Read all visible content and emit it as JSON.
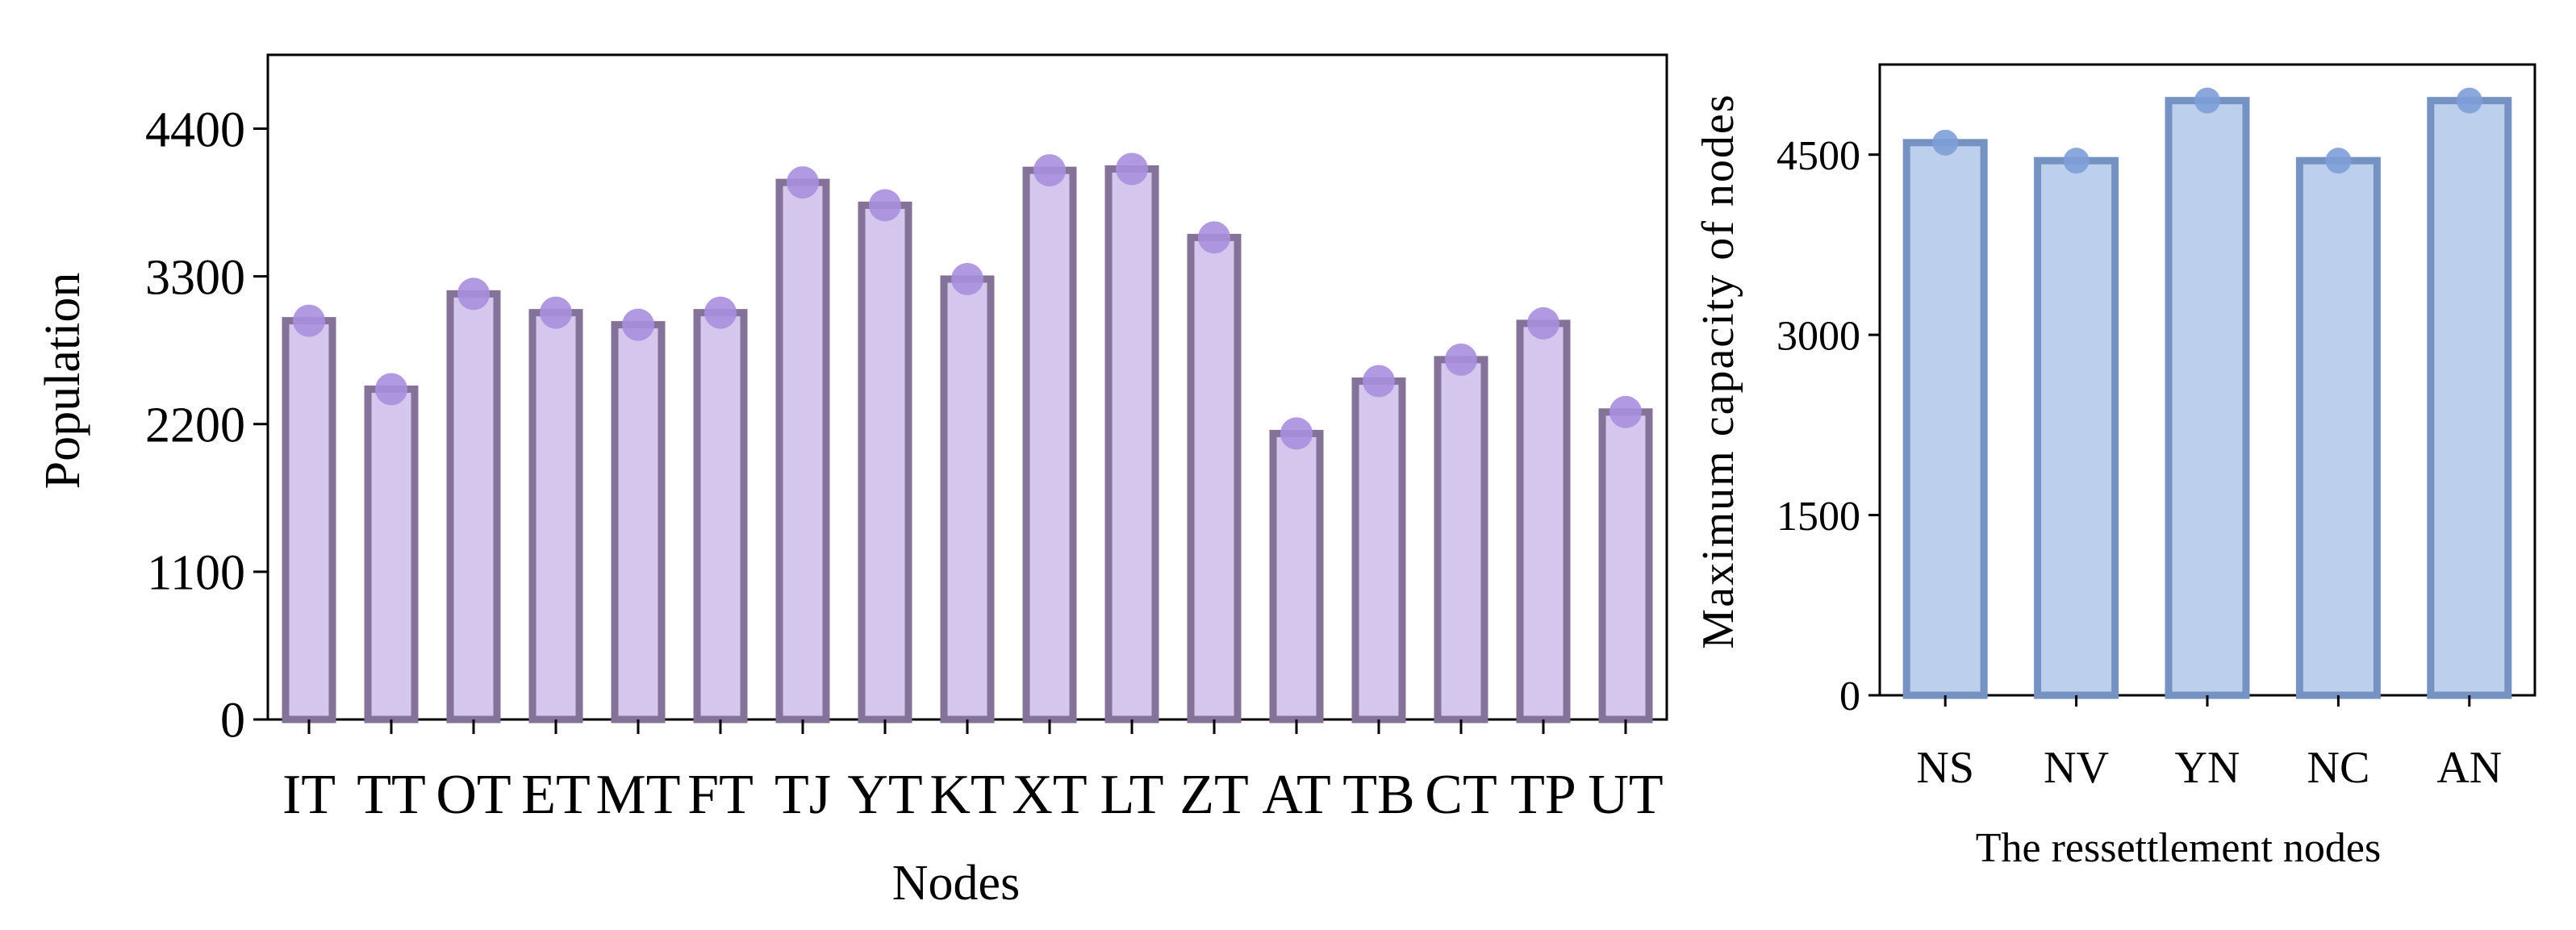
{
  "chart_data": [
    {
      "type": "bar",
      "title": "",
      "xlabel": "Nodes",
      "ylabel": "Population",
      "categories": [
        "IT",
        "TT",
        "OT",
        "ET",
        "MT",
        "FT",
        "TJ",
        "YT",
        "KT",
        "XT",
        "LT",
        "ZT",
        "AT",
        "TB",
        "CT",
        "TP",
        "UT"
      ],
      "values": [
        2970,
        2460,
        3170,
        3030,
        2940,
        3030,
        4000,
        3830,
        3280,
        4090,
        4100,
        3590,
        2130,
        2520,
        2680,
        2950,
        2290
      ],
      "ylim": [
        0,
        4950
      ],
      "yticks": [
        0,
        1100,
        2200,
        3300,
        4400
      ],
      "ytick_labels": [
        "0",
        "1100",
        "2200",
        "3300",
        "4400"
      ],
      "grid": false,
      "colors": {
        "bar_fill": "#d4c6ec",
        "bar_edge": "#857299",
        "marker": "#a98fde"
      }
    },
    {
      "type": "bar",
      "title": "",
      "xlabel": "The ressettlement nodes",
      "ylabel": "Maximum capacity of nodes",
      "categories": [
        "NS",
        "NV",
        "YN",
        "NC",
        "AN"
      ],
      "values": [
        4600,
        4450,
        4950,
        4450,
        4950
      ],
      "ylim": [
        0,
        5250
      ],
      "yticks": [
        0,
        1500,
        3000,
        4500
      ],
      "ytick_labels": [
        "0",
        "1500",
        "3000",
        "4500"
      ],
      "grid": false,
      "colors": {
        "bar_fill": "#bccfec",
        "bar_edge": "#7592c3",
        "marker": "#7d9fd8"
      }
    }
  ]
}
